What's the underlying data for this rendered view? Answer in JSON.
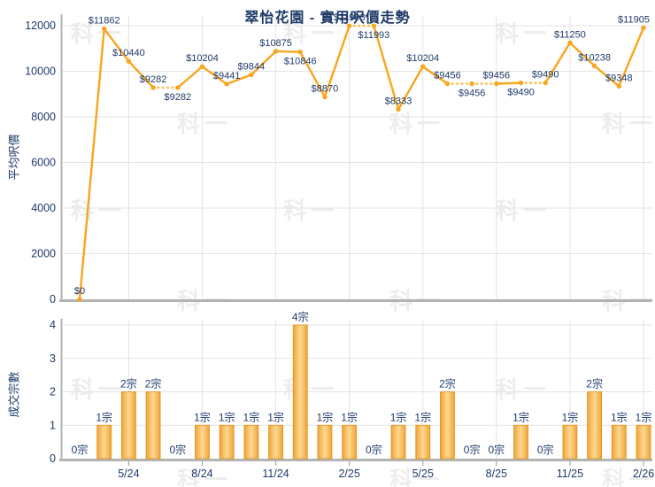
{
  "title": "翠怡花園 - 實用呎價走勢",
  "watermark_text": "科一",
  "colors": {
    "accent_orange": "#F9A51D",
    "dotted_orange": "#FBC35F",
    "bar_edge": "#E2921B",
    "bar_center": "#FCD98F",
    "label_navy": "#1E3A68",
    "grid": "#E3E3E3",
    "axis": "#B3B3B3",
    "tick": "#999999",
    "watermark_gray": "#EDEDED"
  },
  "chart_data": [
    {
      "type": "line",
      "title": "翠怡花園 - 實用呎價走勢",
      "ylabel": "平均呎價",
      "ylim": [
        0,
        12000
      ],
      "yticks": [
        0,
        2000,
        4000,
        6000,
        8000,
        10000,
        12000
      ],
      "grid": true,
      "x_ticks": [
        {
          "i": 2,
          "label": "5/24"
        },
        {
          "i": 5,
          "label": "8/24"
        },
        {
          "i": 8,
          "label": "11/24"
        },
        {
          "i": 11,
          "label": "2/25"
        },
        {
          "i": 14,
          "label": "5/25"
        },
        {
          "i": 17,
          "label": "8/25"
        },
        {
          "i": 20,
          "label": "11/25"
        },
        {
          "i": 23,
          "label": "2/26"
        }
      ],
      "points": [
        {
          "value": 0,
          "label": "$0",
          "side": "above",
          "interp": false
        },
        {
          "value": 11862,
          "label": "$11862",
          "side": "above",
          "interp": false
        },
        {
          "value": 10440,
          "label": "$10440",
          "side": "above",
          "interp": false
        },
        {
          "value": 9282,
          "label": "$9282",
          "side": "above",
          "interp": false
        },
        {
          "value": 9282,
          "label": "$9282",
          "side": "below",
          "interp": true
        },
        {
          "value": 10204,
          "label": "$10204",
          "side": "above",
          "interp": false
        },
        {
          "value": 9441,
          "label": "$9441",
          "side": "above",
          "interp": false
        },
        {
          "value": 9844,
          "label": "$9844",
          "side": "above",
          "interp": false
        },
        {
          "value": 10875,
          "label": "$10875",
          "side": "above",
          "interp": false
        },
        {
          "value": 10846,
          "label": "$10846",
          "side": "below",
          "interp": false
        },
        {
          "value": 8870,
          "label": "$8870",
          "side": "above",
          "interp": false
        },
        {
          "value": 11993,
          "label": "$11993",
          "side": "above",
          "interp": false
        },
        {
          "value": 11993,
          "label": "$11993",
          "side": "below",
          "interp": true
        },
        {
          "value": 8333,
          "label": "$8333",
          "side": "above",
          "interp": false
        },
        {
          "value": 10204,
          "label": "$10204",
          "side": "above",
          "interp": false
        },
        {
          "value": 9456,
          "label": "$9456",
          "side": "above",
          "interp": false
        },
        {
          "value": 9456,
          "label": "$9456",
          "side": "below",
          "interp": true
        },
        {
          "value": 9456,
          "label": "$9456",
          "side": "above",
          "interp": true
        },
        {
          "value": 9490,
          "label": "$9490",
          "side": "below",
          "interp": false
        },
        {
          "value": 9490,
          "label": "$9490",
          "side": "above",
          "interp": true
        },
        {
          "value": 11250,
          "label": "$11250",
          "side": "above",
          "interp": false
        },
        {
          "value": 10238,
          "label": "$10238",
          "side": "above",
          "interp": false
        },
        {
          "value": 9348,
          "label": "$9348",
          "side": "above",
          "interp": false
        },
        {
          "value": 11905,
          "label": "$11905",
          "side": "above",
          "interp": false
        }
      ]
    },
    {
      "type": "bar",
      "ylabel": "成交宗數",
      "ylim": [
        0,
        4
      ],
      "yticks": [
        0,
        1,
        2,
        3,
        4
      ],
      "grid": true,
      "values": [
        0,
        1,
        2,
        2,
        0,
        1,
        1,
        1,
        1,
        4,
        1,
        1,
        0,
        1,
        1,
        2,
        0,
        0,
        1,
        0,
        1,
        2,
        1,
        1
      ],
      "labels": [
        "0宗",
        "1宗",
        "2宗",
        "2宗",
        "0宗",
        "1宗",
        "1宗",
        "1宗",
        "1宗",
        "4宗",
        "1宗",
        "1宗",
        "0宗",
        "1宗",
        "1宗",
        "2宗",
        "0宗",
        "0宗",
        "1宗",
        "0宗",
        "1宗",
        "2宗",
        "1宗",
        "1宗"
      ]
    }
  ]
}
